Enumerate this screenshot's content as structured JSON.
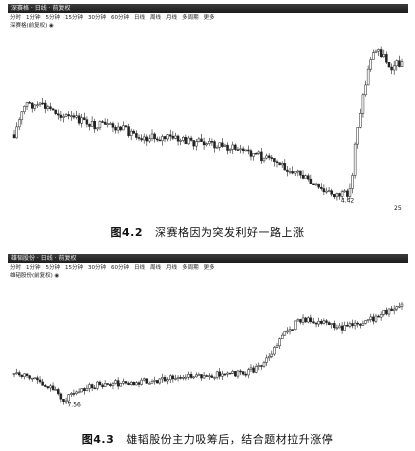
{
  "figure_top": {
    "titlebar": "深赛格 · 日线 · 前复权",
    "toolbar": [
      "分时",
      "1分钟",
      "5分钟",
      "15分钟",
      "30分钟",
      "60分钟",
      "日线",
      "周线",
      "月线",
      "多周期",
      "更多"
    ],
    "subtitle": "深赛格(前复权) ◉",
    "low_label": "4.42",
    "corner_label": "25",
    "caption_num": "图4.2",
    "caption_text": "深赛格因为突发利好一路上涨"
  },
  "figure_bottom": {
    "titlebar": "雄韬股份 · 日线 · 前复权",
    "toolbar": [
      "分时",
      "1分钟",
      "5分钟",
      "15分钟",
      "30分钟",
      "60分钟",
      "日线",
      "周线",
      "月线",
      "多周期",
      "更多"
    ],
    "subtitle": "雄韬股份(前复权) ◉",
    "low_label": "7.56",
    "caption_num": "图4.3",
    "caption_text": "雄韬股份主力吸筹后，结合题材拉升涨停"
  },
  "colors": {
    "candle": "#222222",
    "background": "#ffffff",
    "titlebar": "#2a2a2a"
  },
  "chart_data": [
    {
      "type": "candlestick",
      "title": "",
      "path": [
        [
          0,
          0.58
        ],
        [
          0.03,
          0.4
        ],
        [
          0.08,
          0.42
        ],
        [
          0.13,
          0.47
        ],
        [
          0.2,
          0.52
        ],
        [
          0.28,
          0.55
        ],
        [
          0.34,
          0.6
        ],
        [
          0.4,
          0.6
        ],
        [
          0.45,
          0.62
        ],
        [
          0.52,
          0.64
        ],
        [
          0.6,
          0.68
        ],
        [
          0.68,
          0.75
        ],
        [
          0.73,
          0.8
        ],
        [
          0.77,
          0.88
        ],
        [
          0.8,
          0.92
        ],
        [
          0.85,
          0.94
        ],
        [
          0.87,
          0.9
        ],
        [
          0.88,
          0.6
        ],
        [
          0.9,
          0.35
        ],
        [
          0.92,
          0.12
        ],
        [
          0.94,
          0.08
        ],
        [
          0.97,
          0.18
        ],
        [
          1.0,
          0.15
        ]
      ],
      "min_label": "4.42"
    },
    {
      "type": "candlestick",
      "title": "",
      "path": [
        [
          0,
          0.68
        ],
        [
          0.06,
          0.72
        ],
        [
          0.1,
          0.8
        ],
        [
          0.13,
          0.88
        ],
        [
          0.16,
          0.8
        ],
        [
          0.22,
          0.76
        ],
        [
          0.3,
          0.74
        ],
        [
          0.38,
          0.72
        ],
        [
          0.46,
          0.7
        ],
        [
          0.54,
          0.68
        ],
        [
          0.6,
          0.66
        ],
        [
          0.64,
          0.62
        ],
        [
          0.67,
          0.48
        ],
        [
          0.7,
          0.36
        ],
        [
          0.73,
          0.28
        ],
        [
          0.76,
          0.26
        ],
        [
          0.8,
          0.28
        ],
        [
          0.84,
          0.32
        ],
        [
          0.88,
          0.3
        ],
        [
          0.92,
          0.26
        ],
        [
          0.96,
          0.2
        ],
        [
          1.0,
          0.14
        ]
      ],
      "min_label": "7.56"
    }
  ]
}
